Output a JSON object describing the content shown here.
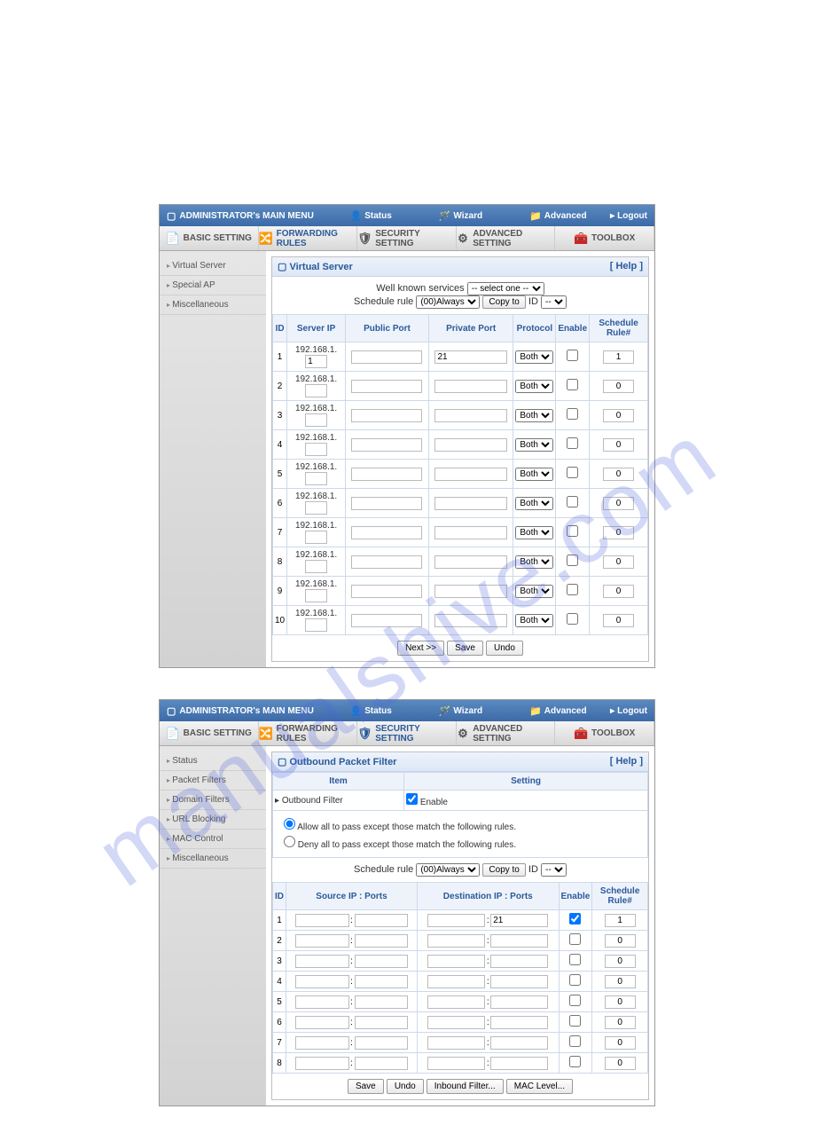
{
  "watermark": "manualshive.com",
  "panel1": {
    "topbar": {
      "title": "ADMINISTRATOR's MAIN MENU",
      "items": [
        "Status",
        "Wizard",
        "Advanced"
      ],
      "logout": "Logout"
    },
    "tabs": [
      "BASIC SETTING",
      "FORWARDING RULES",
      "SECURITY SETTING",
      "ADVANCED SETTING",
      "TOOLBOX"
    ],
    "active_tab": 1,
    "sidebar": [
      "Virtual Server",
      "Special AP",
      "Miscellaneous"
    ],
    "panel_title": "Virtual Server",
    "help": "[ Help ]",
    "well_known_label": "Well known services",
    "well_known_value": "-- select one --",
    "sched_label": "Schedule rule",
    "sched_value": "(00)Always",
    "copy_btn": "Copy to",
    "id_label": "ID",
    "id_value": "--",
    "columns": [
      "ID",
      "Server IP",
      "Public Port",
      "Private Port",
      "Protocol",
      "Enable",
      "Schedule Rule#"
    ],
    "ip_prefix": "192.168.1.",
    "rows": [
      {
        "id": "1",
        "ip": "1",
        "pub": "",
        "priv": "21",
        "proto": "Both",
        "en": false,
        "sched": "1"
      },
      {
        "id": "2",
        "ip": "",
        "pub": "",
        "priv": "",
        "proto": "Both",
        "en": false,
        "sched": "0"
      },
      {
        "id": "3",
        "ip": "",
        "pub": "",
        "priv": "",
        "proto": "Both",
        "en": false,
        "sched": "0"
      },
      {
        "id": "4",
        "ip": "",
        "pub": "",
        "priv": "",
        "proto": "Both",
        "en": false,
        "sched": "0"
      },
      {
        "id": "5",
        "ip": "",
        "pub": "",
        "priv": "",
        "proto": "Both",
        "en": false,
        "sched": "0"
      },
      {
        "id": "6",
        "ip": "",
        "pub": "",
        "priv": "",
        "proto": "Both",
        "en": false,
        "sched": "0"
      },
      {
        "id": "7",
        "ip": "",
        "pub": "",
        "priv": "",
        "proto": "Both",
        "en": false,
        "sched": "0"
      },
      {
        "id": "8",
        "ip": "",
        "pub": "",
        "priv": "",
        "proto": "Both",
        "en": false,
        "sched": "0"
      },
      {
        "id": "9",
        "ip": "",
        "pub": "",
        "priv": "",
        "proto": "Both",
        "en": false,
        "sched": "0"
      },
      {
        "id": "10",
        "ip": "",
        "pub": "",
        "priv": "",
        "proto": "Both",
        "en": false,
        "sched": "0"
      }
    ],
    "buttons": [
      "Next >>",
      "Save",
      "Undo"
    ]
  },
  "panel2": {
    "topbar": {
      "title": "ADMINISTRATOR's MAIN MENU",
      "items": [
        "Status",
        "Wizard",
        "Advanced"
      ],
      "logout": "Logout"
    },
    "tabs": [
      "BASIC SETTING",
      "FORWARDING RULES",
      "SECURITY SETTING",
      "ADVANCED SETTING",
      "TOOLBOX"
    ],
    "active_tab": 2,
    "sidebar": [
      "Status",
      "Packet Filters",
      "Domain Filters",
      "URL Blocking",
      "MAC Control",
      "Miscellaneous"
    ],
    "panel_title": "Outbound Packet Filter",
    "help": "[ Help ]",
    "item_header": "Item",
    "setting_header": "Setting",
    "outbound_label": "Outbound Filter",
    "enable_label": "Enable",
    "radio_allow": "Allow all to pass except those match the following rules.",
    "radio_deny": "Deny all to pass except those match the following rules.",
    "sched_label": "Schedule rule",
    "sched_value": "(00)Always",
    "copy_btn": "Copy to",
    "id_label": "ID",
    "id_value": "--",
    "columns": [
      "ID",
      "Source IP : Ports",
      "Destination IP : Ports",
      "Enable",
      "Schedule Rule#"
    ],
    "rows": [
      {
        "id": "1",
        "sip": "",
        "sport": "",
        "dip": "",
        "dport": "21",
        "en": true,
        "sched": "1"
      },
      {
        "id": "2",
        "sip": "",
        "sport": "",
        "dip": "",
        "dport": "",
        "en": false,
        "sched": "0"
      },
      {
        "id": "3",
        "sip": "",
        "sport": "",
        "dip": "",
        "dport": "",
        "en": false,
        "sched": "0"
      },
      {
        "id": "4",
        "sip": "",
        "sport": "",
        "dip": "",
        "dport": "",
        "en": false,
        "sched": "0"
      },
      {
        "id": "5",
        "sip": "",
        "sport": "",
        "dip": "",
        "dport": "",
        "en": false,
        "sched": "0"
      },
      {
        "id": "6",
        "sip": "",
        "sport": "",
        "dip": "",
        "dport": "",
        "en": false,
        "sched": "0"
      },
      {
        "id": "7",
        "sip": "",
        "sport": "",
        "dip": "",
        "dport": "",
        "en": false,
        "sched": "0"
      },
      {
        "id": "8",
        "sip": "",
        "sport": "",
        "dip": "",
        "dport": "",
        "en": false,
        "sched": "0"
      }
    ],
    "buttons": [
      "Save",
      "Undo",
      "Inbound Filter...",
      "MAC Level..."
    ]
  }
}
